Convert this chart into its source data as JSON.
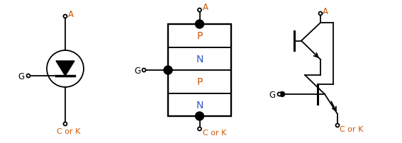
{
  "orange": "#CC5500",
  "blue": "#3355BB",
  "black": "#000000",
  "bg": "#ffffff",
  "layer_labels": [
    "P",
    "N",
    "P",
    "N"
  ]
}
